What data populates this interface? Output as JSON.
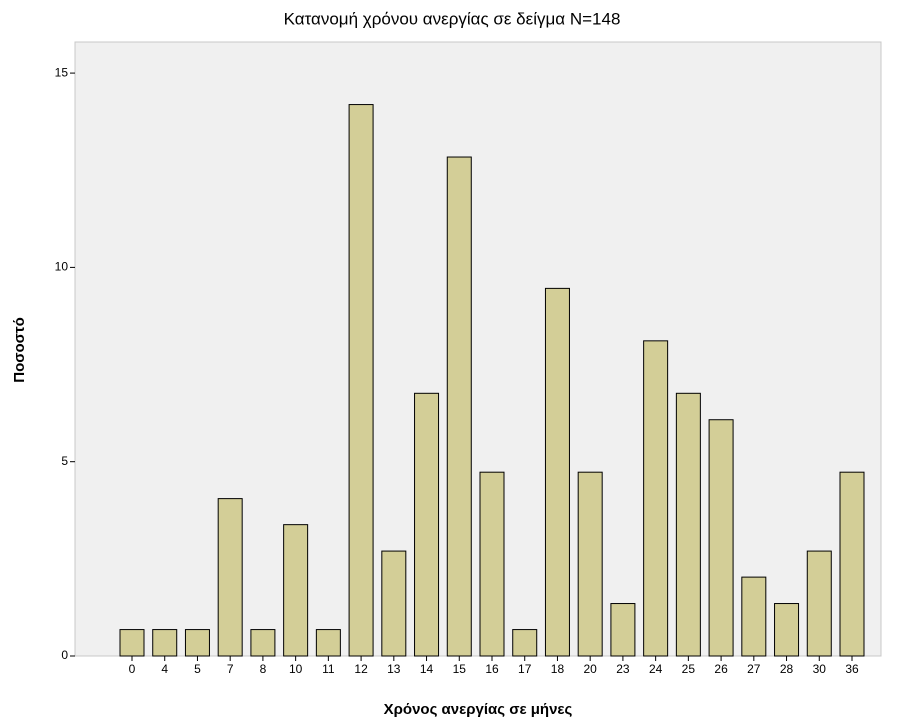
{
  "chart_data": {
    "type": "bar",
    "title": "Κατανομή χρόνου ανεργίας  σε δείγμα N=148",
    "x_label": "Χρόνος ανεργίας  σε μήνες",
    "y_label": "Ποσοστό",
    "categories": [
      "0",
      "4",
      "5",
      "7",
      "8",
      "10",
      "11",
      "12",
      "13",
      "14",
      "15",
      "16",
      "17",
      "18",
      "20",
      "23",
      "24",
      "25",
      "26",
      "27",
      "28",
      "30",
      "36"
    ],
    "values": [
      0.68,
      0.68,
      0.68,
      4.05,
      0.68,
      3.38,
      0.68,
      14.19,
      2.7,
      6.76,
      12.84,
      4.73,
      0.68,
      9.46,
      4.73,
      1.35,
      8.11,
      6.76,
      6.08,
      2.03,
      1.35,
      2.7,
      4.73
    ],
    "color": "#d3ce97",
    "ylim": [
      0,
      15.8
    ],
    "yticks": [
      0,
      5,
      10,
      15
    ],
    "grid": false
  }
}
